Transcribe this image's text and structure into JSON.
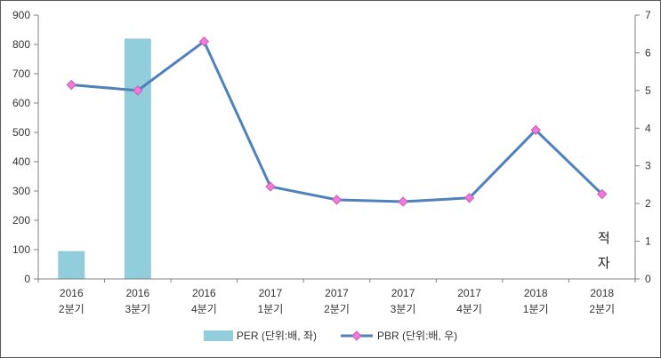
{
  "chart_data": {
    "type": "combo",
    "title": "",
    "categories": [
      [
        "2016",
        "2분기"
      ],
      [
        "2016",
        "3분기"
      ],
      [
        "2016",
        "4분기"
      ],
      [
        "2017",
        "1분기"
      ],
      [
        "2017",
        "2분기"
      ],
      [
        "2017",
        "3분기"
      ],
      [
        "2017",
        "4분기"
      ],
      [
        "2018",
        "1분기"
      ],
      [
        "2018",
        "2분기"
      ]
    ],
    "series": [
      {
        "name": "PER (단위:배, 좌)",
        "type": "bar",
        "axis": "left",
        "color": "#92CDDC",
        "values": [
          95,
          820,
          null,
          null,
          null,
          null,
          null,
          null,
          null
        ]
      },
      {
        "name": "PBR (단위:배, 우)",
        "type": "line",
        "axis": "right",
        "color": "#4F81BD",
        "marker": "diamond",
        "marker_fill": "#F07AD9",
        "marker_stroke": "#C75FB8",
        "values": [
          5.15,
          5.0,
          6.3,
          2.45,
          2.1,
          2.05,
          2.15,
          3.95,
          2.25
        ]
      }
    ],
    "left_axis": {
      "min": 0,
      "max": 900,
      "step": 100,
      "tick_labels": [
        "0",
        "100",
        "200",
        "300",
        "400",
        "500",
        "600",
        "700",
        "800",
        "900"
      ]
    },
    "right_axis": {
      "min": 0,
      "max": 7,
      "step": 1,
      "tick_labels": [
        "0",
        "1",
        "2",
        "3",
        "4",
        "5",
        "6",
        "7"
      ]
    },
    "annotation": {
      "lines": [
        "적",
        "자"
      ],
      "category_index": 8
    },
    "legend_position": "bottom",
    "grid": false
  }
}
